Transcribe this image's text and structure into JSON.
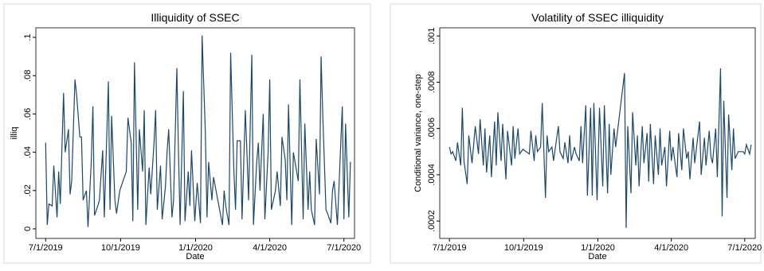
{
  "chart_data": [
    {
      "type": "line",
      "title": "Illiquidity of SSEC",
      "x_label": "Date",
      "y_label": "illiq",
      "color": "#1a476f",
      "x": [
        "7/1/2019",
        "7/3/2019",
        "7/5/2019",
        "7/9/2019",
        "7/11/2019",
        "7/15/2019",
        "7/17/2019",
        "7/19/2019",
        "7/23/2019",
        "7/25/2019",
        "7/29/2019",
        "7/31/2019",
        "8/2/2019",
        "8/6/2019",
        "8/8/2019",
        "8/12/2019",
        "8/14/2019",
        "8/16/2019",
        "8/20/2019",
        "8/22/2019",
        "8/26/2019",
        "8/28/2019",
        "8/30/2019",
        "9/3/2019",
        "9/5/2019",
        "9/9/2019",
        "9/11/2019",
        "9/16/2019",
        "9/18/2019",
        "9/20/2019",
        "9/24/2019",
        "9/26/2019",
        "9/30/2019",
        "10/8/2019",
        "10/10/2019",
        "10/14/2019",
        "10/16/2019",
        "10/18/2019",
        "10/22/2019",
        "10/24/2019",
        "10/28/2019",
        "10/30/2019",
        "11/1/2019",
        "11/5/2019",
        "11/7/2019",
        "11/11/2019",
        "11/13/2019",
        "11/15/2019",
        "11/19/2019",
        "11/21/2019",
        "11/25/2019",
        "11/27/2019",
        "11/29/2019",
        "12/3/2019",
        "12/5/2019",
        "12/9/2019",
        "12/11/2019",
        "12/13/2019",
        "12/17/2019",
        "12/19/2019",
        "12/23/2019",
        "12/25/2019",
        "12/27/2019",
        "12/31/2019",
        "1/3/2020",
        "1/7/2020",
        "1/9/2020",
        "1/13/2020",
        "1/15/2020",
        "1/17/2020",
        "1/21/2020",
        "1/23/2020",
        "2/3/2020",
        "2/5/2020",
        "2/7/2020",
        "2/11/2020",
        "2/13/2020",
        "2/17/2020",
        "2/19/2020",
        "2/21/2020",
        "2/25/2020",
        "2/27/2020",
        "3/2/2020",
        "3/4/2020",
        "3/6/2020",
        "3/10/2020",
        "3/12/2020",
        "3/16/2020",
        "3/18/2020",
        "3/20/2020",
        "3/24/2020",
        "3/26/2020",
        "3/30/2020",
        "4/1/2020",
        "4/3/2020",
        "4/8/2020",
        "4/10/2020",
        "4/14/2020",
        "4/16/2020",
        "4/20/2020",
        "4/22/2020",
        "4/24/2020",
        "4/28/2020",
        "4/30/2020",
        "5/6/2020",
        "5/8/2020",
        "5/12/2020",
        "5/14/2020",
        "5/18/2020",
        "5/20/2020",
        "5/22/2020",
        "5/26/2020",
        "5/28/2020",
        "6/1/2020",
        "6/3/2020",
        "6/5/2020",
        "6/9/2020",
        "6/11/2020",
        "6/15/2020",
        "6/17/2020",
        "6/19/2020",
        "6/23/2020",
        "6/29/2020",
        "7/1/2020",
        "7/3/2020",
        "7/7/2020",
        "7/9/2020"
      ],
      "values": [
        0.045,
        0.002,
        0.013,
        0.012,
        0.033,
        0.006,
        0.03,
        0.013,
        0.071,
        0.04,
        0.052,
        0.018,
        0.025,
        0.078,
        0.07,
        0.048,
        0.048,
        0.015,
        0.02,
        0.001,
        0.035,
        0.064,
        0.007,
        0.012,
        0.015,
        0.041,
        0.006,
        0.077,
        0.01,
        0.059,
        0.015,
        0.008,
        0.02,
        0.03,
        0.058,
        0.045,
        0.004,
        0.087,
        0.01,
        0.052,
        0.03,
        0.062,
        0.002,
        0.032,
        0.018,
        0.045,
        0.062,
        0.01,
        0.033,
        0.005,
        0.022,
        0.04,
        0.052,
        0.006,
        0.015,
        0.084,
        0.04,
        0.002,
        0.072,
        0.004,
        0.03,
        0.012,
        0.041,
        0.004,
        0.024,
        0.003,
        0.101,
        0.05,
        0.006,
        0.035,
        0.015,
        0.027,
        0.002,
        0.02,
        0.012,
        0.002,
        0.092,
        0.03,
        0.01,
        0.046,
        0.046,
        0.005,
        0.062,
        0.04,
        0.015,
        0.091,
        0.002,
        0.035,
        0.045,
        0.02,
        0.06,
        0.005,
        0.04,
        0.078,
        0.01,
        0.02,
        0.03,
        0.012,
        0.048,
        0.036,
        0.015,
        0.065,
        0.002,
        0.04,
        0.025,
        0.078,
        0.005,
        0.055,
        0.01,
        0.03,
        0.01,
        0.002,
        0.047,
        0.018,
        0.09,
        0.06,
        0.01,
        0.008,
        0.003,
        0.02,
        0.025,
        0.002,
        0.064,
        0.005,
        0.055,
        0.006,
        0.035
      ],
      "xlim": [
        "6/19/2019",
        "7/14/2020"
      ],
      "xticks": [
        "7/1/2019",
        "10/1/2019",
        "1/1/2020",
        "4/1/2020",
        "7/1/2020"
      ],
      "ylim": [
        -0.005,
        0.105
      ],
      "yticks": [
        0,
        {
          "value": 0.02,
          "label": ".02"
        },
        {
          "value": 0.04,
          "label": ".04"
        },
        {
          "value": 0.06,
          "label": ".06"
        },
        {
          "value": 0.08,
          "label": ".08"
        },
        {
          "value": 0.1,
          "label": ".1"
        }
      ]
    },
    {
      "type": "line",
      "title": "Volatility of SSEC illiquidity",
      "x_label": "Date",
      "y_label": "Conditional variance, one-step",
      "color": "#1a476f",
      "x": [
        "7/1/2019",
        "7/3/2019",
        "7/5/2019",
        "7/9/2019",
        "7/11/2019",
        "7/15/2019",
        "7/17/2019",
        "7/19/2019",
        "7/23/2019",
        "7/25/2019",
        "7/29/2019",
        "7/31/2019",
        "8/2/2019",
        "8/6/2019",
        "8/8/2019",
        "8/12/2019",
        "8/14/2019",
        "8/16/2019",
        "8/20/2019",
        "8/22/2019",
        "8/26/2019",
        "8/28/2019",
        "8/30/2019",
        "9/3/2019",
        "9/5/2019",
        "9/9/2019",
        "9/11/2019",
        "9/16/2019",
        "9/18/2019",
        "9/20/2019",
        "9/24/2019",
        "9/26/2019",
        "9/30/2019",
        "10/8/2019",
        "10/10/2019",
        "10/14/2019",
        "10/16/2019",
        "10/18/2019",
        "10/22/2019",
        "10/24/2019",
        "10/28/2019",
        "10/30/2019",
        "11/1/2019",
        "11/5/2019",
        "11/7/2019",
        "11/11/2019",
        "11/13/2019",
        "11/15/2019",
        "11/19/2019",
        "11/21/2019",
        "11/25/2019",
        "11/27/2019",
        "11/29/2019",
        "12/3/2019",
        "12/5/2019",
        "12/9/2019",
        "12/11/2019",
        "12/13/2019",
        "12/17/2019",
        "12/19/2019",
        "12/23/2019",
        "12/25/2019",
        "12/27/2019",
        "12/31/2019",
        "1/3/2020",
        "1/7/2020",
        "1/9/2020",
        "1/13/2020",
        "1/15/2020",
        "1/17/2020",
        "1/21/2020",
        "1/23/2020",
        "2/3/2020",
        "2/5/2020",
        "2/7/2020",
        "2/11/2020",
        "2/13/2020",
        "2/17/2020",
        "2/19/2020",
        "2/21/2020",
        "2/25/2020",
        "2/27/2020",
        "3/2/2020",
        "3/4/2020",
        "3/6/2020",
        "3/10/2020",
        "3/12/2020",
        "3/16/2020",
        "3/18/2020",
        "3/20/2020",
        "3/24/2020",
        "3/26/2020",
        "3/30/2020",
        "4/1/2020",
        "4/3/2020",
        "4/8/2020",
        "4/10/2020",
        "4/14/2020",
        "4/16/2020",
        "4/20/2020",
        "4/22/2020",
        "4/24/2020",
        "4/28/2020",
        "4/30/2020",
        "5/6/2020",
        "5/8/2020",
        "5/12/2020",
        "5/14/2020",
        "5/18/2020",
        "5/20/2020",
        "5/22/2020",
        "5/26/2020",
        "5/28/2020",
        "6/1/2020",
        "6/3/2020",
        "6/5/2020",
        "6/9/2020",
        "6/11/2020",
        "6/15/2020",
        "6/17/2020",
        "6/19/2020",
        "6/23/2020",
        "6/29/2020",
        "7/1/2020",
        "7/3/2020",
        "7/7/2020",
        "7/9/2020"
      ],
      "values": [
        0.00052,
        0.00049,
        0.0005,
        0.00046,
        0.00054,
        0.00044,
        0.00069,
        0.00046,
        0.00036,
        0.00057,
        0.00045,
        0.00053,
        0.00061,
        0.00049,
        0.00064,
        0.00044,
        0.0006,
        0.00041,
        0.00057,
        0.00039,
        0.00063,
        0.00044,
        0.00067,
        0.00046,
        0.00062,
        0.00038,
        0.00059,
        0.00044,
        0.00061,
        0.00047,
        0.0006,
        0.00049,
        0.00051,
        0.00049,
        0.00059,
        0.00046,
        0.00057,
        0.0005,
        0.00052,
        0.00071,
        0.0003,
        0.00057,
        0.0005,
        0.00052,
        0.00046,
        0.00056,
        0.00061,
        0.0005,
        0.00047,
        0.00054,
        0.00045,
        0.00057,
        0.00046,
        0.00052,
        0.00049,
        0.00046,
        0.00061,
        0.00045,
        0.0007,
        0.00031,
        0.00069,
        0.00031,
        0.00071,
        0.00029,
        0.00069,
        0.00035,
        0.0007,
        0.00032,
        0.00062,
        0.0004,
        0.0006,
        0.00052,
        0.00084,
        0.00017,
        0.00061,
        0.00032,
        0.00067,
        0.00044,
        0.00057,
        0.00035,
        0.00061,
        0.00045,
        0.00058,
        0.00037,
        0.00062,
        0.00036,
        0.00057,
        0.0004,
        0.0006,
        0.00044,
        0.00052,
        0.00035,
        0.00059,
        0.00046,
        0.00052,
        0.00039,
        0.00058,
        0.00042,
        0.0006,
        0.00047,
        0.0005,
        0.00038,
        0.00056,
        0.00045,
        0.00063,
        0.0004,
        0.00056,
        0.00044,
        0.00059,
        0.00048,
        0.00045,
        0.0006,
        0.00039,
        0.00086,
        0.00022,
        0.00072,
        0.0003,
        0.00066,
        0.00042,
        0.0006,
        0.00047,
        0.0005,
        0.0005,
        0.00049,
        0.00053,
        0.00049,
        0.00053
      ],
      "xlim": [
        "6/19/2019",
        "7/14/2020"
      ],
      "xticks": [
        "7/1/2019",
        "10/1/2019",
        "1/1/2020",
        "4/1/2020",
        "7/1/2020"
      ],
      "ylim": [
        0.000125,
        0.001035
      ],
      "yticks": [
        {
          "value": 0.0002,
          "label": ".0002"
        },
        {
          "value": 0.0004,
          "label": ".0004"
        },
        {
          "value": 0.0006,
          "label": ".0006"
        },
        {
          "value": 0.0008,
          "label": ".0008"
        },
        {
          "value": 0.001,
          "label": ".001"
        }
      ]
    }
  ]
}
